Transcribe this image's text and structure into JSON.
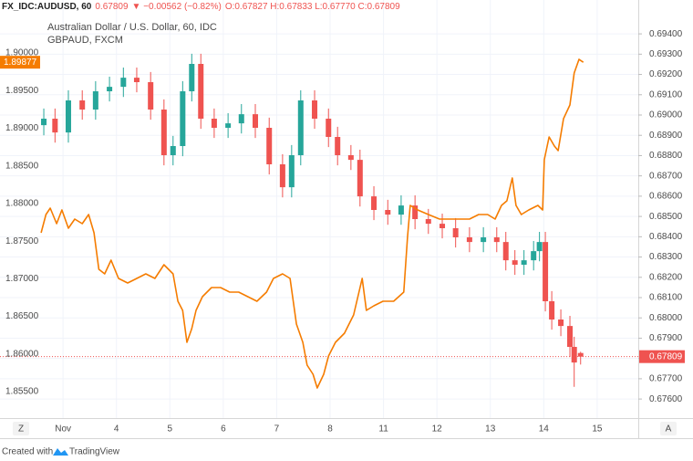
{
  "chart_data": {
    "type": "candlestick",
    "header": {
      "symbol": "FX_IDC:AUDUSD, 60",
      "last": "0.67809",
      "change": "▼ −0.00562 (−0.82%)",
      "ohlc": "O:0.67827 H:0.67833 L:0.67770 C:0.67809"
    },
    "title": "Australian Dollar / U.S. Dollar, 60, IDC",
    "xlim": [
      -1.18,
      10.77
    ],
    "xticks": [
      {
        "value": 0,
        "label": "Nov"
      },
      {
        "value": 1,
        "label": "4"
      },
      {
        "value": 2,
        "label": "5"
      },
      {
        "value": 3,
        "label": "6"
      },
      {
        "value": 4,
        "label": "7"
      },
      {
        "value": 5,
        "label": "8"
      },
      {
        "value": 6,
        "label": "11"
      },
      {
        "value": 7,
        "label": "12"
      },
      {
        "value": 8,
        "label": "13"
      },
      {
        "value": 9,
        "label": "14"
      },
      {
        "value": 10,
        "label": "15"
      }
    ],
    "ylim": [
      0.67506,
      0.69567
    ],
    "yticks": [
      {
        "value": 0.676,
        "label": "0.67600"
      },
      {
        "value": 0.677,
        "label": "0.67700"
      },
      {
        "value": 0.678,
        "label": "0.67800"
      },
      {
        "value": 0.679,
        "label": "0.67900"
      },
      {
        "value": 0.68,
        "label": "0.68000"
      },
      {
        "value": 0.681,
        "label": "0.68100"
      },
      {
        "value": 0.682,
        "label": "0.68200"
      },
      {
        "value": 0.683,
        "label": "0.68300"
      },
      {
        "value": 0.684,
        "label": "0.68400"
      },
      {
        "value": 0.685,
        "label": "0.68500"
      },
      {
        "value": 0.686,
        "label": "0.68600"
      },
      {
        "value": 0.687,
        "label": "0.68700"
      },
      {
        "value": 0.688,
        "label": "0.68800"
      },
      {
        "value": 0.689,
        "label": "0.68900"
      },
      {
        "value": 0.69,
        "label": "0.69000"
      },
      {
        "value": 0.691,
        "label": "0.69100"
      },
      {
        "value": 0.692,
        "label": "0.69200"
      },
      {
        "value": 0.693,
        "label": "0.69300"
      },
      {
        "value": 0.694,
        "label": "0.69400"
      }
    ],
    "y2lim": [
      1.85148,
      1.90704
    ],
    "y2ticks": [
      {
        "value": 1.855,
        "label": "1.85500"
      },
      {
        "value": 1.86,
        "label": "1.86000"
      },
      {
        "value": 1.865,
        "label": "1.86500"
      },
      {
        "value": 1.87,
        "label": "1.87000"
      },
      {
        "value": 1.875,
        "label": "1.87500"
      },
      {
        "value": 1.88,
        "label": "1.88000"
      },
      {
        "value": 1.885,
        "label": "1.88500"
      },
      {
        "value": 1.89,
        "label": "1.89000"
      },
      {
        "value": 1.895,
        "label": "1.89500"
      },
      {
        "value": 1.9,
        "label": "1.90000"
      }
    ],
    "grid": true,
    "candles": {
      "up_color": "#26a69a",
      "down_color": "#ef5350",
      "x": [
        -0.36,
        -0.15,
        0.1,
        0.36,
        0.61,
        0.87,
        1.13,
        1.38,
        1.64,
        1.89,
        2.06,
        2.24,
        2.41,
        2.58,
        2.83,
        3.09,
        3.34,
        3.6,
        3.86,
        4.11,
        4.28,
        4.45,
        4.71,
        4.97,
        5.14,
        5.39,
        5.56,
        5.82,
        6.08,
        6.33,
        6.59,
        6.84,
        7.1,
        7.35,
        7.61,
        7.87,
        8.12,
        8.29,
        8.46,
        8.63,
        8.81,
        8.92,
        9.03,
        9.15,
        9.32,
        9.49,
        9.57,
        9.69
      ],
      "open": [
        0.6895,
        0.68982,
        0.68914,
        0.69072,
        0.69027,
        0.69117,
        0.69139,
        0.69184,
        0.69162,
        0.69027,
        0.68802,
        0.68847,
        0.69117,
        0.69252,
        0.68982,
        0.68937,
        0.68959,
        0.69004,
        0.68937,
        0.68757,
        0.68644,
        0.68802,
        0.69072,
        0.68982,
        0.68892,
        0.68802,
        0.68779,
        0.68599,
        0.68532,
        0.68509,
        0.68554,
        0.68487,
        0.68464,
        0.68442,
        0.68397,
        0.68374,
        0.68397,
        0.68374,
        0.68284,
        0.68262,
        0.68284,
        0.68329,
        0.68374,
        0.68082,
        0.67992,
        0.6796,
        0.67857,
        0.67827
      ],
      "high": [
        0.69032,
        0.69032,
        0.69122,
        0.69122,
        0.69167,
        0.69189,
        0.69234,
        0.69234,
        0.69212,
        0.69077,
        0.68897,
        0.69167,
        0.69302,
        0.69302,
        0.69032,
        0.69009,
        0.69054,
        0.69054,
        0.68987,
        0.68807,
        0.68852,
        0.69122,
        0.69122,
        0.69032,
        0.68942,
        0.68852,
        0.68829,
        0.68649,
        0.68582,
        0.68604,
        0.68604,
        0.68537,
        0.68514,
        0.68492,
        0.68447,
        0.68447,
        0.68447,
        0.68424,
        0.68334,
        0.68334,
        0.68379,
        0.68424,
        0.68424,
        0.68132,
        0.68042,
        0.6801,
        0.67907,
        0.67833
      ],
      "low": [
        0.689,
        0.68864,
        0.68864,
        0.68977,
        0.68977,
        0.69067,
        0.69089,
        0.69112,
        0.68977,
        0.68752,
        0.68752,
        0.68797,
        0.69067,
        0.68932,
        0.68887,
        0.68887,
        0.68909,
        0.68887,
        0.68707,
        0.68594,
        0.68594,
        0.68752,
        0.68932,
        0.68842,
        0.68752,
        0.68729,
        0.68549,
        0.68482,
        0.68459,
        0.68459,
        0.68437,
        0.68414,
        0.68392,
        0.68347,
        0.68324,
        0.68324,
        0.68324,
        0.68234,
        0.68212,
        0.68212,
        0.68234,
        0.68279,
        0.68032,
        0.67942,
        0.6791,
        0.67807,
        0.6766,
        0.6777
      ],
      "close": [
        0.68982,
        0.68914,
        0.69072,
        0.69027,
        0.69117,
        0.69139,
        0.69184,
        0.69162,
        0.69027,
        0.68802,
        0.68847,
        0.69117,
        0.69252,
        0.68982,
        0.68937,
        0.68959,
        0.69004,
        0.68937,
        0.68757,
        0.68644,
        0.68802,
        0.69072,
        0.68982,
        0.68892,
        0.68802,
        0.68779,
        0.68599,
        0.68532,
        0.68509,
        0.68554,
        0.68487,
        0.68464,
        0.68442,
        0.68397,
        0.68374,
        0.68397,
        0.68374,
        0.68284,
        0.68262,
        0.68284,
        0.68329,
        0.68374,
        0.68082,
        0.67992,
        0.6796,
        0.67857,
        0.6778,
        0.67809
      ]
    },
    "overlay": {
      "type": "line",
      "name": "GBPAUD, FXCM",
      "color": "#f57c00",
      "axis": "y2",
      "x": [
        -0.41,
        -0.32,
        -0.24,
        -0.12,
        -0.02,
        0.1,
        0.22,
        0.36,
        0.48,
        0.58,
        0.67,
        0.78,
        0.9,
        1.04,
        1.21,
        1.38,
        1.55,
        1.72,
        1.89,
        2.06,
        2.15,
        2.24,
        2.32,
        2.41,
        2.49,
        2.61,
        2.78,
        2.95,
        3.12,
        3.29,
        3.46,
        3.63,
        3.81,
        3.94,
        4.11,
        4.25,
        4.37,
        4.49,
        4.57,
        4.68,
        4.76,
        4.88,
        4.97,
        5.1,
        5.27,
        5.44,
        5.6,
        5.68,
        5.82,
        5.99,
        6.19,
        6.38,
        6.45,
        6.5,
        6.64,
        6.84,
        7.05,
        7.27,
        7.44,
        7.61,
        7.78,
        7.95,
        8.09,
        8.21,
        8.31,
        8.41,
        8.48,
        8.58,
        8.72,
        8.89,
        8.98,
        9.01,
        9.1,
        9.2,
        9.27,
        9.37,
        9.49,
        9.57,
        9.66,
        9.74
      ],
      "values": [
        1.8761,
        1.87853,
        1.87938,
        1.87732,
        1.87914,
        1.87671,
        1.87792,
        1.87732,
        1.87853,
        1.8761,
        1.87125,
        1.87065,
        1.87247,
        1.87004,
        1.86943,
        1.87004,
        1.87065,
        1.87004,
        1.87186,
        1.87065,
        1.86701,
        1.86579,
        1.86155,
        1.86337,
        1.86579,
        1.86761,
        1.86883,
        1.86883,
        1.86822,
        1.86822,
        1.86761,
        1.86701,
        1.86822,
        1.87004,
        1.87065,
        1.87004,
        1.86397,
        1.86155,
        1.85852,
        1.8573,
        1.85548,
        1.8573,
        1.85973,
        1.86155,
        1.86276,
        1.86519,
        1.87004,
        1.86579,
        1.8664,
        1.86701,
        1.86701,
        1.86822,
        1.8755,
        1.87974,
        1.87914,
        1.87853,
        1.87792,
        1.87792,
        1.87792,
        1.87792,
        1.87853,
        1.87853,
        1.87792,
        1.87974,
        1.88035,
        1.88338,
        1.87974,
        1.87853,
        1.87914,
        1.87974,
        1.87914,
        1.88581,
        1.88884,
        1.88763,
        1.88702,
        1.89127,
        1.89309,
        1.89733,
        1.89915,
        1.89877
      ]
    },
    "scale_buttons": [
      "Z",
      "A"
    ],
    "footer": {
      "prefix": "Created with",
      "brand": "TradingView"
    }
  }
}
